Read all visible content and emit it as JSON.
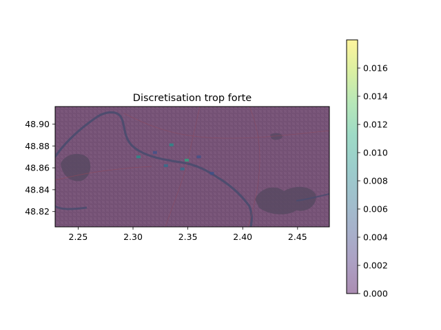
{
  "chart_data": {
    "type": "heatmap",
    "title": "Discretisation trop forte",
    "xlabel": "",
    "ylabel": "",
    "xlim": [
      2.229,
      2.479
    ],
    "ylim": [
      48.806,
      48.916
    ],
    "x_ticks": [
      "2.25",
      "2.30",
      "2.35",
      "2.40",
      "2.45"
    ],
    "y_ticks": [
      "48.82",
      "48.84",
      "48.86",
      "48.88",
      "48.90"
    ],
    "background": "map of Paris (street map underlay)",
    "grid": false,
    "colormap": "viridis",
    "alpha": 0.4,
    "colorbar": {
      "min": 0.0,
      "max": 0.018,
      "ticks": [
        "0.000",
        "0.002",
        "0.004",
        "0.006",
        "0.008",
        "0.010",
        "0.012",
        "0.014",
        "0.016"
      ]
    },
    "hotspots": [
      {
        "x": 2.305,
        "y": 48.87,
        "value": 0.009
      },
      {
        "x": 2.335,
        "y": 48.881,
        "value": 0.008
      },
      {
        "x": 2.33,
        "y": 48.862,
        "value": 0.007
      },
      {
        "x": 2.349,
        "y": 48.867,
        "value": 0.011
      },
      {
        "x": 2.345,
        "y": 48.859,
        "value": 0.006
      },
      {
        "x": 2.36,
        "y": 48.87,
        "value": 0.005
      },
      {
        "x": 2.372,
        "y": 48.855,
        "value": 0.005
      },
      {
        "x": 2.32,
        "y": 48.874,
        "value": 0.004
      }
    ]
  }
}
